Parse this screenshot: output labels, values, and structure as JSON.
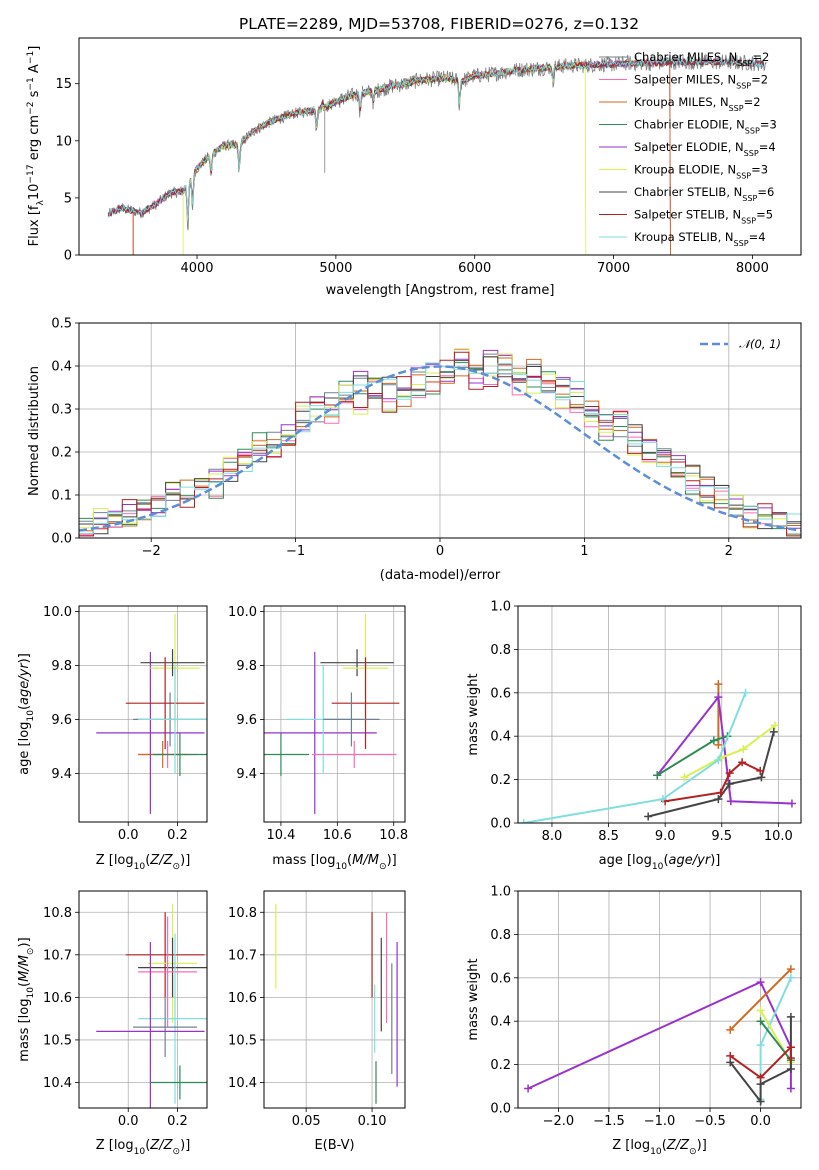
{
  "figure_title": "PLATE=2289, MJD=53708, FIBERID=0276, z=0.132",
  "colors": {
    "Chabrier MILES": "#708090",
    "Salpeter MILES": "#ff69b4",
    "Kroupa MILES": "#d2691e",
    "Chabrier ELODIE": "#2e8b57",
    "Salpeter ELODIE": "#9932cc",
    "Kroupa ELODIE": "#d8f050",
    "Chabrier STELIB": "#444444",
    "Salpeter STELIB": "#b22222",
    "Kroupa STELIB": "#80dede",
    "data": "#808080",
    "gauss": "#5b8ed6"
  },
  "chart_data": [
    {
      "id": "spectrum",
      "type": "line",
      "title": "PLATE=2289, MJD=53708, FIBERID=0276, z=0.132",
      "xlabel": "wavelength [Angstrom, rest frame]",
      "ylabel": "Flux [f_λ 10^-17 erg cm^-2 s^-1 A^-1]",
      "xlim": [
        3150,
        8350
      ],
      "ylim": [
        0,
        19
      ],
      "xticks": [
        4000,
        5000,
        6000,
        7000,
        8000
      ],
      "yticks": [
        0,
        5,
        10,
        15
      ],
      "legend_location": "right",
      "legend": [
        {
          "label": "Chabrier MILES, N_SSP=2"
        },
        {
          "label": "Salpeter MILES, N_SSP=2"
        },
        {
          "label": "Kroupa MILES, N_SSP=2"
        },
        {
          "label": "Chabrier ELODIE, N_SSP=3"
        },
        {
          "label": "Salpeter ELODIE, N_SSP=4"
        },
        {
          "label": "Kroupa ELODIE, N_SSP=3"
        },
        {
          "label": "Chabrier STELIB, N_SSP=6"
        },
        {
          "label": "Salpeter STELIB, N_SSP=5"
        },
        {
          "label": "Kroupa STELIB, N_SSP=4"
        }
      ],
      "continuum": [
        [
          3350,
          3.5
        ],
        [
          3450,
          4.1
        ],
        [
          3600,
          3.7
        ],
        [
          3700,
          4.4
        ],
        [
          3800,
          5.4
        ],
        [
          3900,
          5.6
        ],
        [
          4000,
          7.6
        ],
        [
          4100,
          8.8
        ],
        [
          4200,
          9.6
        ],
        [
          4300,
          9.6
        ],
        [
          4400,
          10.8
        ],
        [
          4500,
          11.5
        ],
        [
          4600,
          12.0
        ],
        [
          4700,
          12.4
        ],
        [
          4800,
          12.6
        ],
        [
          4900,
          12.8
        ],
        [
          5000,
          13.4
        ],
        [
          5100,
          13.9
        ],
        [
          5200,
          14.2
        ],
        [
          5300,
          14.4
        ],
        [
          5400,
          14.8
        ],
        [
          5500,
          15.0
        ],
        [
          5600,
          15.3
        ],
        [
          5700,
          15.4
        ],
        [
          5800,
          15.5
        ],
        [
          5900,
          15.2
        ],
        [
          6000,
          15.7
        ],
        [
          6100,
          15.8
        ],
        [
          6200,
          16.0
        ],
        [
          6300,
          16.2
        ],
        [
          6400,
          16.3
        ],
        [
          6500,
          16.4
        ],
        [
          6600,
          16.5
        ],
        [
          6700,
          16.6
        ],
        [
          6800,
          16.6
        ],
        [
          6900,
          16.7
        ],
        [
          7000,
          16.7
        ],
        [
          7100,
          16.8
        ],
        [
          7200,
          16.8
        ],
        [
          7300,
          16.8
        ],
        [
          7400,
          16.9
        ],
        [
          7600,
          16.9
        ],
        [
          7800,
          16.9
        ],
        [
          8000,
          16.8
        ],
        [
          8100,
          16.7
        ]
      ],
      "model_cutoffs": [
        {
          "model": "Kroupa MILES",
          "start": 3540,
          "end": 7410
        },
        {
          "model": "Salpeter MILES",
          "start": 3540,
          "end": 7410
        },
        {
          "model": "Chabrier MILES",
          "start": 3540,
          "end": 7410
        },
        {
          "model": "Kroupa ELODIE",
          "start": 3900,
          "end": 6800
        }
      ]
    },
    {
      "id": "residual_hist",
      "type": "histogram",
      "xlabel": "(data-model)/error",
      "ylabel": "Normed distribution",
      "xlim": [
        -2.5,
        2.5
      ],
      "ylim": [
        0,
        0.5
      ],
      "xticks": [
        -2,
        -1,
        0,
        1,
        2
      ],
      "yticks": [
        0.0,
        0.1,
        0.2,
        0.3,
        0.4,
        0.5
      ],
      "legend_label": "𝒩(0, 1)",
      "bin_width": 0.1,
      "series": [
        {
          "values": [
            0.02,
            0.03,
            0.04,
            0.05,
            0.07,
            0.08,
            0.1,
            0.11,
            0.12,
            0.13,
            0.15,
            0.17,
            0.2,
            0.22,
            0.24,
            0.27,
            0.3,
            0.31,
            0.33,
            0.36,
            0.34,
            0.35,
            0.33,
            0.37,
            0.38,
            0.37,
            0.4,
            0.39,
            0.41,
            0.4,
            0.38,
            0.39,
            0.36,
            0.35,
            0.34,
            0.3,
            0.28,
            0.26,
            0.24,
            0.22,
            0.19,
            0.17,
            0.14,
            0.12,
            0.1,
            0.08,
            0.06,
            0.05,
            0.04,
            0.03
          ]
        },
        {
          "values": [
            0.03,
            0.04,
            0.05,
            0.06,
            0.06,
            0.09,
            0.11,
            0.1,
            0.14,
            0.12,
            0.16,
            0.18,
            0.22,
            0.21,
            0.23,
            0.29,
            0.3,
            0.28,
            0.34,
            0.31,
            0.36,
            0.32,
            0.35,
            0.33,
            0.36,
            0.39,
            0.42,
            0.37,
            0.38,
            0.42,
            0.36,
            0.35,
            0.37,
            0.33,
            0.31,
            0.28,
            0.25,
            0.27,
            0.22,
            0.2,
            0.18,
            0.15,
            0.13,
            0.11,
            0.09,
            0.08,
            0.05,
            0.05,
            0.03,
            0.02
          ]
        }
      ]
    },
    {
      "id": "age_vs_Z",
      "type": "scatter",
      "xlabel": "Z [log10(Z/Z☉)]",
      "ylabel": "age [log10(age/yr)]",
      "xlim": [
        -0.2,
        0.32
      ],
      "ylim": [
        9.22,
        10.02
      ],
      "xticks": [
        0.0,
        0.2
      ],
      "yticks": [
        9.4,
        9.6,
        9.8,
        10.0
      ],
      "points": [
        {
          "model": "Chabrier MILES",
          "x": 0.17,
          "y": 9.6,
          "xerr": 0.15,
          "yerr": 0.1
        },
        {
          "model": "Salpeter MILES",
          "x": 0.16,
          "y": 9.47,
          "xerr": 0.12,
          "yerr": 0.05
        },
        {
          "model": "Kroupa MILES",
          "x": 0.14,
          "y": 9.47,
          "xerr": 0.1,
          "yerr": 0.05
        },
        {
          "model": "Chabrier ELODIE",
          "x": 0.21,
          "y": 9.47,
          "xerr": 0.11,
          "yerr": 0.08
        },
        {
          "model": "Salpeter ELODIE",
          "x": 0.09,
          "y": 9.55,
          "xerr": 0.22,
          "yerr": 0.3
        },
        {
          "model": "Kroupa ELODIE",
          "x": 0.19,
          "y": 9.79,
          "xerr": 0.1,
          "yerr": 0.2
        },
        {
          "model": "Chabrier STELIB",
          "x": 0.18,
          "y": 9.81,
          "xerr": 0.13,
          "yerr": 0.05
        },
        {
          "model": "Salpeter STELIB",
          "x": 0.15,
          "y": 9.66,
          "xerr": 0.16,
          "yerr": 0.17
        },
        {
          "model": "Kroupa STELIB",
          "x": 0.19,
          "y": 9.6,
          "xerr": 0.15,
          "yerr": 0.2
        }
      ]
    },
    {
      "id": "age_vs_mass",
      "type": "scatter",
      "xlabel": "mass [log10(M/M☉)]",
      "ylabel": "",
      "xlim": [
        10.34,
        10.84
      ],
      "ylim": [
        9.22,
        10.02
      ],
      "xticks": [
        10.4,
        10.6,
        10.8
      ],
      "yticks": [
        9.4,
        9.6,
        9.8,
        10.0
      ],
      "points": [
        {
          "model": "Chabrier ELODIE",
          "x": 10.4,
          "y": 9.47,
          "xerr": 0.1,
          "yerr": 0.08
        },
        {
          "model": "Salpeter ELODIE",
          "x": 10.52,
          "y": 9.55,
          "xerr": 0.22,
          "yerr": 0.3
        },
        {
          "model": "Kroupa STELIB",
          "x": 10.55,
          "y": 9.6,
          "xerr": 0.13,
          "yerr": 0.2
        },
        {
          "model": "Salpeter MILES",
          "x": 10.66,
          "y": 9.47,
          "xerr": 0.15,
          "yerr": 0.05
        },
        {
          "model": "Chabrier STELIB",
          "x": 10.67,
          "y": 9.81,
          "xerr": 0.13,
          "yerr": 0.05
        },
        {
          "model": "Kroupa ELODIE",
          "x": 10.7,
          "y": 9.79,
          "xerr": 0.08,
          "yerr": 0.2
        },
        {
          "model": "Salpeter STELIB",
          "x": 10.7,
          "y": 9.66,
          "xerr": 0.12,
          "yerr": 0.17
        },
        {
          "model": "Chabrier MILES",
          "x": 10.65,
          "y": 9.6,
          "xerr": 0.1,
          "yerr": 0.1
        }
      ]
    },
    {
      "id": "massweight_vs_age",
      "type": "line",
      "xlabel": "age [log10(age/yr)]",
      "ylabel": "mass weight",
      "xlim": [
        7.7,
        10.2
      ],
      "ylim": [
        0,
        1
      ],
      "xticks": [
        8.0,
        8.5,
        9.0,
        9.5,
        10.0
      ],
      "yticks": [
        0.0,
        0.2,
        0.4,
        0.6,
        0.8,
        1.0
      ],
      "series": [
        {
          "model": "Kroupa MILES",
          "points": [
            [
              9.47,
              0.36
            ],
            [
              9.47,
              0.64
            ]
          ]
        },
        {
          "model": "Salpeter ELODIE",
          "points": [
            [
              8.93,
              0.22
            ],
            [
              9.47,
              0.58
            ],
            [
              9.58,
              0.1
            ],
            [
              10.12,
              0.09
            ]
          ]
        },
        {
          "model": "Chabrier ELODIE",
          "points": [
            [
              8.93,
              0.22
            ],
            [
              9.43,
              0.38
            ],
            [
              9.55,
              0.4
            ]
          ]
        },
        {
          "model": "Kroupa ELODIE",
          "points": [
            [
              9.17,
              0.21
            ],
            [
              9.49,
              0.3
            ],
            [
              9.69,
              0.34
            ],
            [
              9.97,
              0.45
            ]
          ]
        },
        {
          "model": "Chabrier STELIB",
          "points": [
            [
              8.85,
              0.03
            ],
            [
              9.47,
              0.11
            ],
            [
              9.57,
              0.18
            ],
            [
              9.85,
              0.21
            ],
            [
              9.96,
              0.42
            ]
          ]
        },
        {
          "model": "Salpeter STELIB",
          "points": [
            [
              9.0,
              0.1
            ],
            [
              9.49,
              0.14
            ],
            [
              9.57,
              0.23
            ],
            [
              9.68,
              0.28
            ],
            [
              9.84,
              0.24
            ]
          ]
        },
        {
          "model": "Kroupa STELIB",
          "points": [
            [
              7.75,
              0.0
            ],
            [
              8.98,
              0.11
            ],
            [
              9.47,
              0.29
            ],
            [
              9.71,
              0.6
            ]
          ]
        }
      ]
    },
    {
      "id": "mass_vs_Z",
      "type": "scatter",
      "xlabel": "Z [log10(Z/Z☉)]",
      "ylabel": "mass [log10(M/M☉)]",
      "xlim": [
        -0.2,
        0.32
      ],
      "ylim": [
        10.34,
        10.85
      ],
      "xticks": [
        0.0,
        0.2
      ],
      "yticks": [
        10.4,
        10.5,
        10.6,
        10.7,
        10.8
      ],
      "points": [
        {
          "model": "Salpeter STELIB",
          "x": 0.15,
          "y": 10.7,
          "xerr": 0.16,
          "yerr": 0.1
        },
        {
          "model": "Kroupa ELODIE",
          "x": 0.18,
          "y": 10.68,
          "xerr": 0.1,
          "yerr": 0.14
        },
        {
          "model": "Chabrier STELIB",
          "x": 0.18,
          "y": 10.67,
          "xerr": 0.14,
          "yerr": 0.07
        },
        {
          "model": "Salpeter MILES",
          "x": 0.16,
          "y": 10.66,
          "xerr": 0.12,
          "yerr": 0.13
        },
        {
          "model": "Kroupa STELIB",
          "x": 0.19,
          "y": 10.55,
          "xerr": 0.15,
          "yerr": 0.2
        },
        {
          "model": "Chabrier MILES",
          "x": 0.15,
          "y": 10.53,
          "xerr": 0.13,
          "yerr": 0.07
        },
        {
          "model": "Salpeter ELODIE",
          "x": 0.09,
          "y": 10.52,
          "xerr": 0.22,
          "yerr": 0.21
        },
        {
          "model": "Chabrier ELODIE",
          "x": 0.21,
          "y": 10.4,
          "xerr": 0.12,
          "yerr": 0.04
        }
      ]
    },
    {
      "id": "mass_vs_EBV",
      "type": "scatter",
      "xlabel": "E(B-V)",
      "ylabel": "",
      "xlim": [
        0.018,
        0.125
      ],
      "ylim": [
        10.34,
        10.85
      ],
      "xticks": [
        0.05,
        0.1
      ],
      "yticks": [
        10.4,
        10.5,
        10.6,
        10.7,
        10.8
      ],
      "points": [
        {
          "model": "Kroupa ELODIE",
          "x": 0.027,
          "y": 10.72,
          "yerr": 0.1
        },
        {
          "model": "Salpeter STELIB",
          "x": 0.1,
          "y": 10.7,
          "yerr": 0.1
        },
        {
          "model": "Chabrier ELODIE",
          "x": 0.103,
          "y": 10.4,
          "yerr": 0.05
        },
        {
          "model": "Kroupa STELIB",
          "x": 0.102,
          "y": 10.55,
          "yerr": 0.08
        },
        {
          "model": "Chabrier STELIB",
          "x": 0.107,
          "y": 10.63,
          "yerr": 0.11
        },
        {
          "model": "Salpeter MILES",
          "x": 0.111,
          "y": 10.67,
          "yerr": 0.13
        },
        {
          "model": "Chabrier MILES",
          "x": 0.115,
          "y": 10.55,
          "yerr": 0.13
        },
        {
          "model": "Salpeter ELODIE",
          "x": 0.119,
          "y": 10.56,
          "yerr": 0.17
        }
      ]
    },
    {
      "id": "massweight_vs_Z",
      "type": "line",
      "xlabel": "Z [log10(Z/Z☉)]",
      "ylabel": "mass weight",
      "xlim": [
        -2.4,
        0.4
      ],
      "ylim": [
        0,
        1
      ],
      "xticks": [
        -2.0,
        -1.5,
        -1.0,
        -0.5,
        0.0
      ],
      "yticks": [
        0.0,
        0.2,
        0.4,
        0.6,
        0.8,
        1.0
      ],
      "series": [
        {
          "model": "Salpeter ELODIE",
          "points": [
            [
              -2.3,
              0.09
            ],
            [
              0.0,
              0.58
            ],
            [
              0.3,
              0.28
            ],
            [
              0.3,
              0.09
            ]
          ]
        },
        {
          "model": "Kroupa MILES",
          "points": [
            [
              -0.3,
              0.36
            ],
            [
              0.3,
              0.64
            ]
          ]
        },
        {
          "model": "Kroupa STELIB",
          "points": [
            [
              0.0,
              0.04
            ],
            [
              0.0,
              0.29
            ],
            [
              0.3,
              0.6
            ]
          ]
        },
        {
          "model": "Kroupa ELODIE",
          "points": [
            [
              0.0,
              0.45
            ],
            [
              0.3,
              0.21
            ]
          ]
        },
        {
          "model": "Chabrier ELODIE",
          "points": [
            [
              0.0,
              0.4
            ],
            [
              0.3,
              0.22
            ]
          ]
        },
        {
          "model": "Chabrier STELIB",
          "points": [
            [
              -0.3,
              0.21
            ],
            [
              0.0,
              0.03
            ],
            [
              0.0,
              0.11
            ],
            [
              0.3,
              0.18
            ],
            [
              0.3,
              0.42
            ]
          ]
        },
        {
          "model": "Salpeter STELIB",
          "points": [
            [
              -0.3,
              0.24
            ],
            [
              0.0,
              0.14
            ],
            [
              0.3,
              0.28
            ],
            [
              0.3,
              0.23
            ]
          ]
        }
      ]
    }
  ]
}
